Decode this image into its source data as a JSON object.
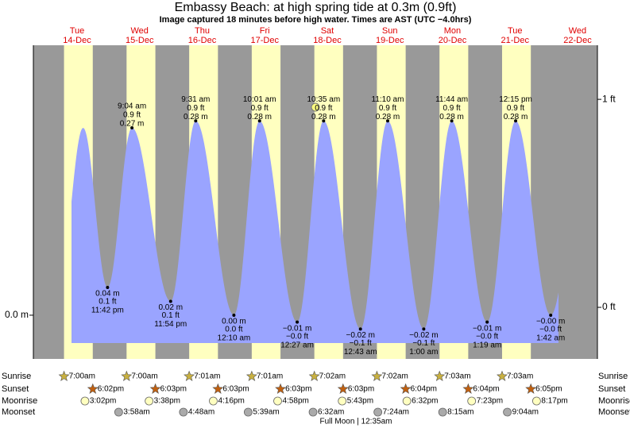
{
  "chart_data": {
    "type": "tide",
    "title": "Embassy Beach: at high  spring tide at 0.3m (0.9ft)",
    "subtitle": "Image captured 18 minutes before high water. Times are AST (UTC −4.0hrs)",
    "ylim": [
      -0.063,
      0.389
    ],
    "yticks": [
      {
        "value": 0,
        "label": "0.0 m"
      }
    ],
    "y2lim": [
      -0.248,
      1.26
    ],
    "y2ticks": [
      {
        "value": 0,
        "label": "0 ft"
      },
      {
        "value": 1,
        "label": "1 ft"
      }
    ],
    "row_labels": {
      "sunrise": "Sunrise",
      "sunset": "Sunset",
      "moonrise": "Moonrise",
      "moonset": "Moonset"
    },
    "moon_phase": "Full Moon | 12:35am",
    "days": [
      {
        "weekday": "Tue",
        "date": "14-Dec",
        "sunrise": "7:00am",
        "sunset": "6:02pm",
        "moonrise": "3:02pm",
        "tides": [
          {
            "time": "11:42 pm",
            "ft": "0.1 ft",
            "m": {
              "value": 0.04,
              "label": "0.04 m"
            }
          }
        ]
      },
      {
        "weekday": "Wed",
        "date": "15-Dec",
        "sunrise": "7:00am",
        "sunset": "6:03pm",
        "moonrise": "3:38pm",
        "moonset": "3:58am",
        "tides": [
          {
            "time": "9:04 am",
            "ft": "0.9 ft",
            "m": {
              "value": 0.27,
              "label": "0.27 m"
            }
          },
          {
            "time": "11:54 pm",
            "ft": "0.1 ft",
            "m": {
              "value": 0.02,
              "label": "0.02 m"
            }
          }
        ]
      },
      {
        "weekday": "Thu",
        "date": "16-Dec",
        "sunrise": "7:01am",
        "sunset": "6:03pm",
        "moonrise": "4:16pm",
        "moonset": "4:48am",
        "tides": [
          {
            "time": "9:31 am",
            "ft": "0.9 ft",
            "m": {
              "value": 0.28,
              "label": "0.28 m"
            }
          }
        ]
      },
      {
        "weekday": "Fri",
        "date": "17-Dec",
        "sunrise": "7:01am",
        "sunset": "6:03pm",
        "moonrise": "4:58pm",
        "moonset": "5:39am",
        "tides": [
          {
            "time": "12:10 am",
            "ft": "0.0 ft",
            "m": {
              "value": 0,
              "label": "0.00 m"
            }
          },
          {
            "time": "10:01 am",
            "ft": "0.9 ft",
            "m": {
              "value": 0.28,
              "label": "0.28 m"
            }
          }
        ]
      },
      {
        "weekday": "Sat",
        "date": "18-Dec",
        "sunrise": "7:02am",
        "sunset": "6:03pm",
        "moonrise": "5:43pm",
        "moonset": "6:32am",
        "tides": [
          {
            "time": "12:27 am",
            "ft": "−0.0 ft",
            "m": {
              "value": -0.01,
              "label": "−0.01 m"
            }
          },
          {
            "time": "10:35 am",
            "ft": "0.9 ft",
            "m": {
              "value": 0.28,
              "label": "0.28 m"
            }
          }
        ]
      },
      {
        "weekday": "Sun",
        "date": "19-Dec",
        "sunrise": "7:02am",
        "sunset": "6:04pm",
        "moonrise": "6:32pm",
        "moonset": "7:24am",
        "tides": [
          {
            "time": "12:43 am",
            "ft": "−0.1 ft",
            "m": {
              "value": -0.02,
              "label": "−0.02 m"
            }
          },
          {
            "time": "11:10 am",
            "ft": "0.9 ft",
            "m": {
              "value": 0.28,
              "label": "0.28 m"
            }
          }
        ]
      },
      {
        "weekday": "Mon",
        "date": "20-Dec",
        "sunrise": "7:03am",
        "sunset": "6:04pm",
        "moonrise": "7:23pm",
        "moonset": "8:15am",
        "tides": [
          {
            "time": "1:00 am",
            "ft": "−0.1 ft",
            "m": {
              "value": -0.02,
              "label": "−0.02 m"
            }
          },
          {
            "time": "11:44 am",
            "ft": "0.9 ft",
            "m": {
              "value": 0.28,
              "label": "0.28 m"
            }
          }
        ]
      },
      {
        "weekday": "Tue",
        "date": "21-Dec",
        "sunrise": "7:03am",
        "sunset": "6:05pm",
        "moonrise": "8:17pm",
        "moonset": "9:04am",
        "tides": [
          {
            "time": "1:19 am",
            "ft": "−0.0 ft",
            "m": {
              "value": -0.01,
              "label": "−0.01 m"
            }
          },
          {
            "time": "12:15 pm",
            "ft": "0.9 ft",
            "m": {
              "value": 0.28,
              "label": "0.28 m"
            }
          }
        ]
      },
      {
        "weekday": "Wed",
        "date": "22-Dec",
        "tides": [
          {
            "time": "1:42 am",
            "ft": "−0.0 ft",
            "m": {
              "value": 0,
              "label": "−0.00 m"
            }
          }
        ]
      }
    ]
  }
}
